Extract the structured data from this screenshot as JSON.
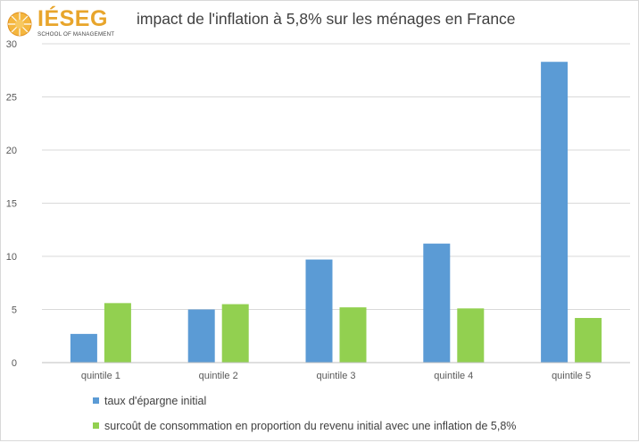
{
  "logo": {
    "name": "IÉSEG",
    "subtitle": "SCHOOL OF MANAGEMENT"
  },
  "colors": {
    "series1": "#5b9bd5",
    "series2": "#92d050",
    "gridline": "#d9d9d9",
    "axis_text": "#595959",
    "logo_accent": "#e8a52b"
  },
  "chart_data": {
    "type": "bar",
    "title": "impact de l'inflation à 5,8% sur les ménages en France",
    "categories": [
      "quintile 1",
      "quintile 2",
      "quintile 3",
      "quintile 4",
      "quintile 5"
    ],
    "series": [
      {
        "name": "taux d'épargne initial",
        "values": [
          2.7,
          5.0,
          9.7,
          11.2,
          28.3
        ]
      },
      {
        "name": "surcoût de consommation en proportion du revenu initial avec une inflation de 5,8%",
        "values": [
          5.6,
          5.5,
          5.2,
          5.1,
          4.2
        ]
      }
    ],
    "yticks": [
      "0",
      "5",
      "10",
      "15",
      "20",
      "25",
      "30"
    ],
    "ylim": [
      0,
      30
    ],
    "xlabel": "",
    "ylabel": "",
    "grid": true,
    "legend_position": "bottom"
  }
}
